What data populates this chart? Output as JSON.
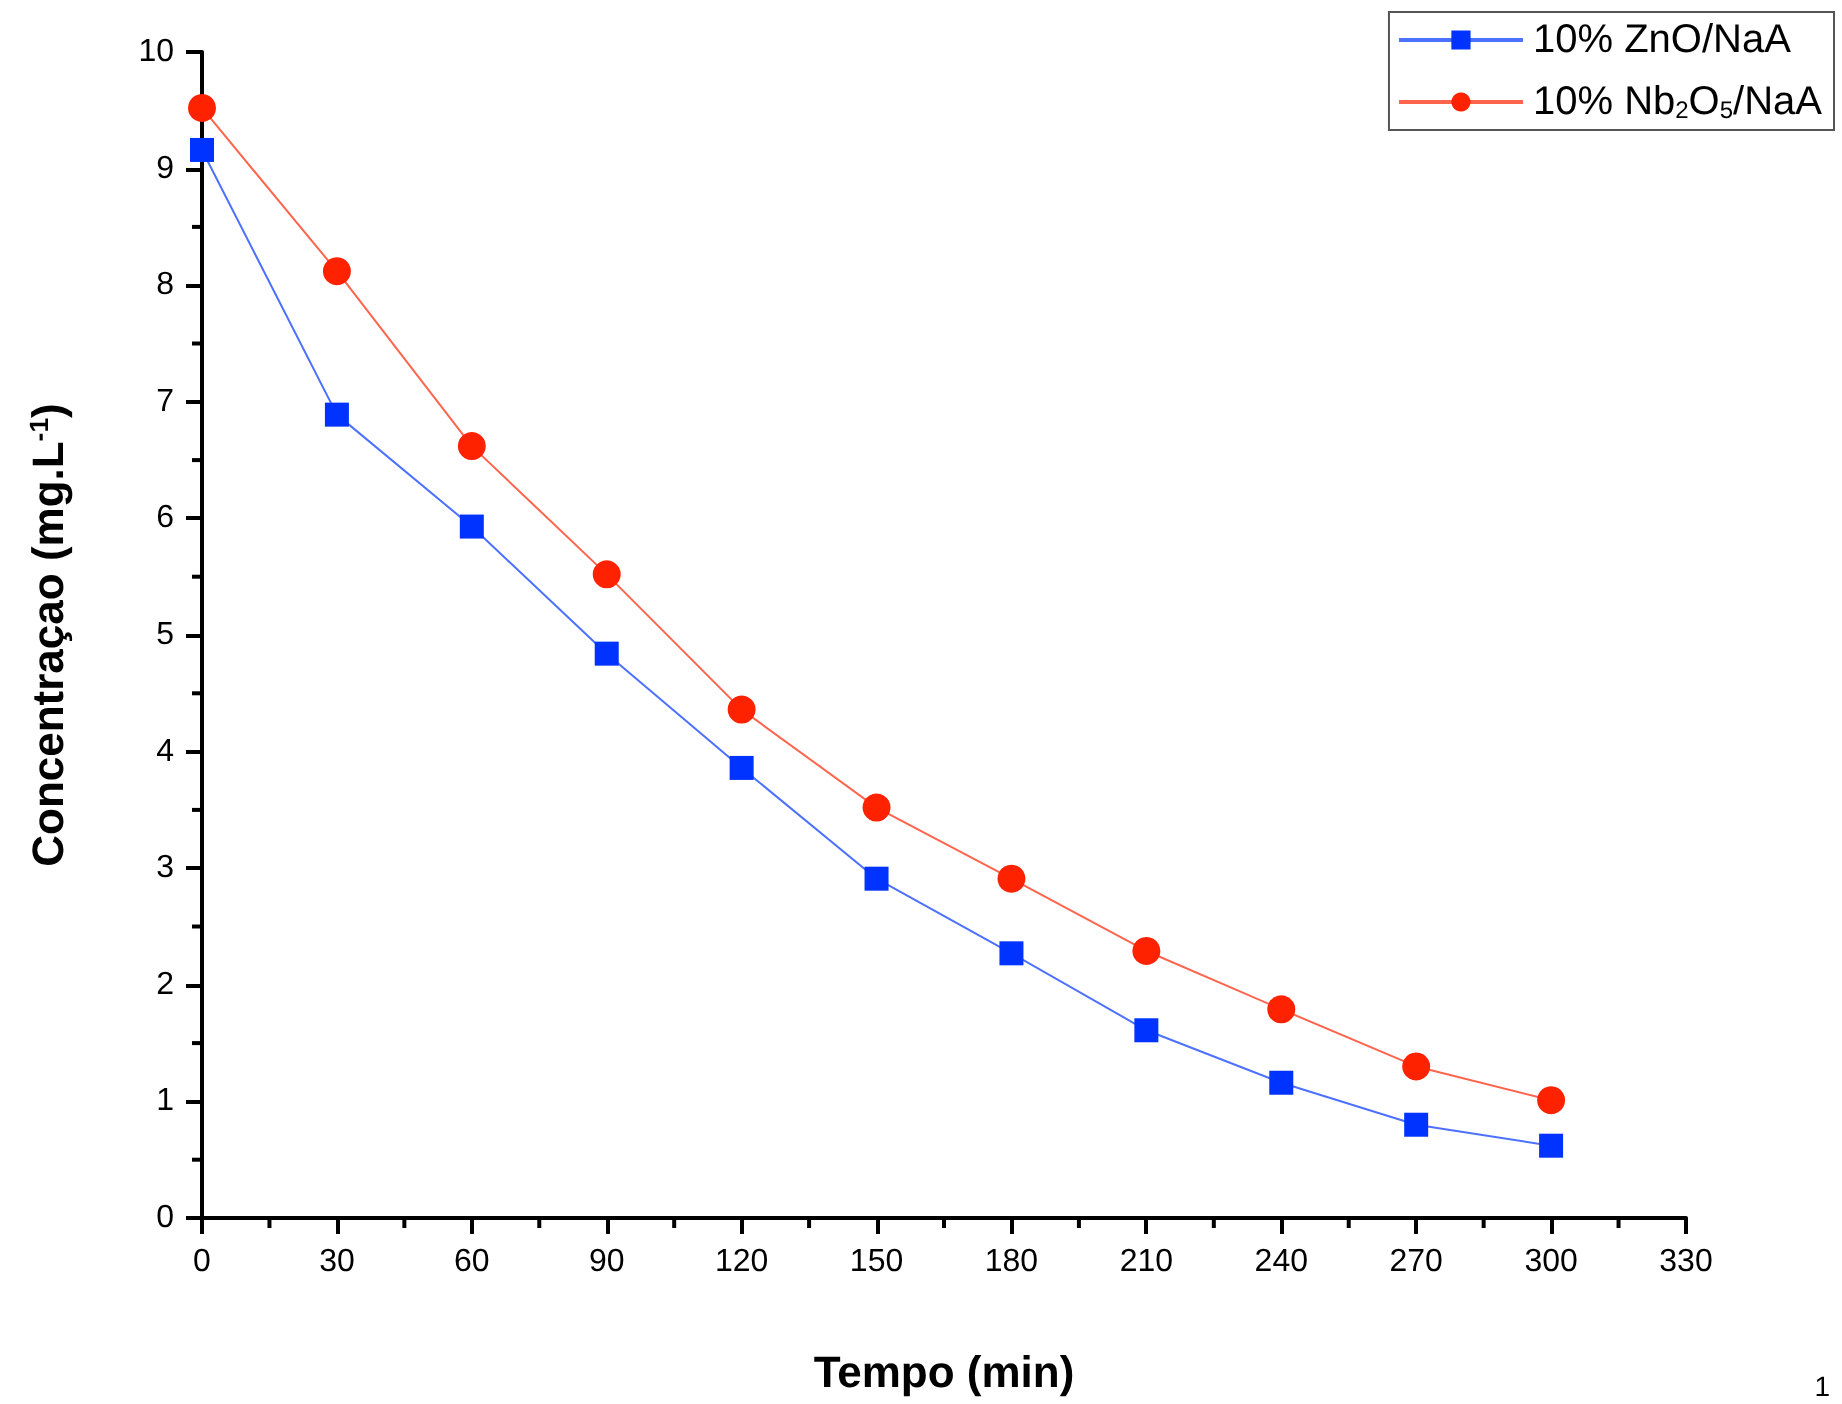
{
  "chart_data": {
    "type": "line",
    "xlabel": "Tempo (min)",
    "ylabel": "Concentraçao (mg.L$^{-1}$)",
    "x": [
      0,
      30,
      60,
      90,
      120,
      150,
      180,
      210,
      240,
      270,
      300
    ],
    "xlim": [
      0,
      330
    ],
    "xticks": [
      0,
      30,
      60,
      90,
      120,
      150,
      180,
      210,
      240,
      270,
      300,
      330
    ],
    "ylim": [
      0,
      10
    ],
    "yticks": [
      0,
      1,
      2,
      3,
      4,
      5,
      6,
      7,
      8,
      9,
      10
    ],
    "series": [
      {
        "name": "10% ZnO/NaA",
        "color": "#0033ff",
        "marker": "square",
        "values": [
          9.16,
          6.89,
          5.93,
          4.84,
          3.86,
          2.91,
          2.27,
          1.61,
          1.16,
          0.8,
          0.62
        ]
      },
      {
        "name": "10% Nb$_{2}$O$_{5}$/NaA",
        "color": "#ff2200",
        "marker": "circle",
        "values": [
          9.52,
          8.12,
          6.62,
          5.52,
          4.36,
          3.52,
          2.91,
          2.29,
          1.79,
          1.3,
          1.01
        ]
      }
    ],
    "legend": "top right",
    "grid": false,
    "line_style": "solid",
    "annotations": [
      "1"
    ]
  }
}
